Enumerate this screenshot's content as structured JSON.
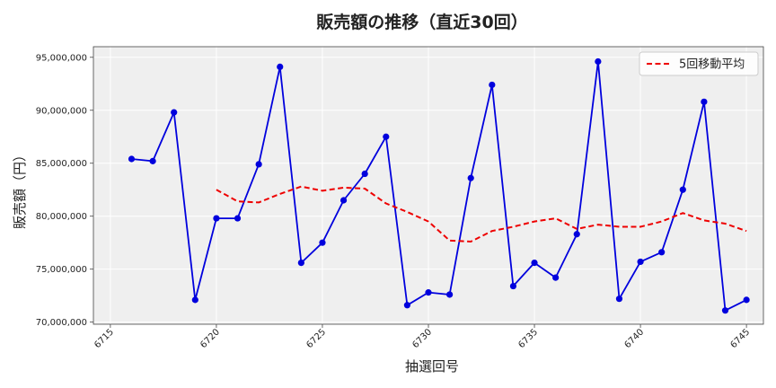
{
  "chart_data": {
    "type": "line",
    "title": "販売額の推移（直近30回）",
    "xlabel": "抽選回号",
    "ylabel": "販売額（円）",
    "xlim": [
      6714.2,
      6745.8
    ],
    "ylim": [
      69800000,
      96000000
    ],
    "xticks": [
      6715,
      6720,
      6725,
      6730,
      6735,
      6740,
      6745
    ],
    "yticks": [
      70000000,
      75000000,
      80000000,
      85000000,
      90000000,
      95000000
    ],
    "grid": true,
    "legend_position": "top-right",
    "series": [
      {
        "name": "",
        "style": "solid-markers",
        "color": "#0000dd",
        "x": [
          6716,
          6717,
          6718,
          6719,
          6720,
          6721,
          6722,
          6723,
          6724,
          6725,
          6726,
          6727,
          6728,
          6729,
          6730,
          6731,
          6732,
          6733,
          6734,
          6735,
          6736,
          6737,
          6738,
          6739,
          6740,
          6741,
          6742,
          6743,
          6744,
          6745
        ],
        "values": [
          85400000,
          85200000,
          89800000,
          72100000,
          79800000,
          79800000,
          84900000,
          94100000,
          75600000,
          77500000,
          81500000,
          84000000,
          87500000,
          71600000,
          72800000,
          72600000,
          83600000,
          92400000,
          73400000,
          75600000,
          74200000,
          78300000,
          94600000,
          72200000,
          75700000,
          76600000,
          82500000,
          90800000,
          71100000,
          72100000
        ]
      },
      {
        "name": "5回移動平均",
        "style": "dashed",
        "color": "#ee0000",
        "x": [
          6720,
          6721,
          6722,
          6723,
          6724,
          6725,
          6726,
          6727,
          6728,
          6729,
          6730,
          6731,
          6732,
          6733,
          6734,
          6735,
          6736,
          6737,
          6738,
          6739,
          6740,
          6741,
          6742,
          6743,
          6744,
          6745
        ],
        "values": [
          82500000,
          81400000,
          81300000,
          82100000,
          82800000,
          82400000,
          82700000,
          82600000,
          81200000,
          80400000,
          79500000,
          77700000,
          77600000,
          78600000,
          79000000,
          79500000,
          79800000,
          78800000,
          79200000,
          79000000,
          79000000,
          79500000,
          80300000,
          79600000,
          79300000,
          78600000
        ]
      }
    ]
  }
}
